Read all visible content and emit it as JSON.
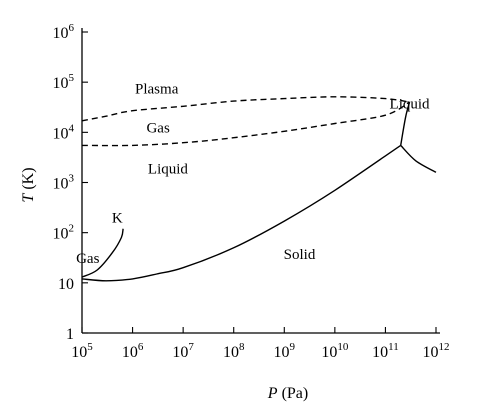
{
  "chart_data": {
    "type": "line",
    "x_scale": "log",
    "y_scale": "log",
    "xlim": [
      100000,
      1000000000000
    ],
    "ylim": [
      1,
      1000000
    ],
    "grid": false,
    "xlabel": {
      "symbol": "P",
      "unit": "(Pa)"
    },
    "ylabel": {
      "symbol": "T",
      "unit": "(K)"
    },
    "x_ticks": [
      {
        "base": "10",
        "exp": "5"
      },
      {
        "base": "10",
        "exp": "6"
      },
      {
        "base": "10",
        "exp": "7"
      },
      {
        "base": "10",
        "exp": "8"
      },
      {
        "base": "10",
        "exp": "9"
      },
      {
        "base": "10",
        "exp": "10"
      },
      {
        "base": "10",
        "exp": "11"
      },
      {
        "base": "10",
        "exp": "12"
      }
    ],
    "y_ticks": [
      {
        "base": "1",
        "exp": ""
      },
      {
        "base": "10",
        "exp": ""
      },
      {
        "base": "10",
        "exp": "2"
      },
      {
        "base": "10",
        "exp": "3"
      },
      {
        "base": "10",
        "exp": "4"
      },
      {
        "base": "10",
        "exp": "5"
      },
      {
        "base": "10",
        "exp": "6"
      }
    ],
    "region_labels": [
      {
        "text": "Plasma",
        "x": 3000000,
        "y": 60000
      },
      {
        "text": "Gas",
        "x": 3200000,
        "y": 10000
      },
      {
        "text": "Liquid",
        "x": 5000000,
        "y": 1500
      },
      {
        "text": "K",
        "x": 500000,
        "y": 160
      },
      {
        "text": "Gas",
        "x": 130000,
        "y": 25
      },
      {
        "text": "Solid",
        "x": 2000000000,
        "y": 30
      },
      {
        "text": "Liquid",
        "x": 300000000000,
        "y": 30000
      }
    ],
    "series": [
      {
        "style": "solid",
        "x": [
          100000,
          300000,
          1000000,
          3000000,
          10000000,
          100000000,
          1000000000,
          10000000000,
          200000000000
        ],
        "y": [
          12,
          11,
          12,
          15,
          20,
          50,
          170,
          700,
          5500
        ]
      },
      {
        "style": "solid",
        "x": [
          100000,
          200000,
          400000,
          600000,
          650000
        ],
        "y": [
          13,
          18,
          40,
          80,
          120
        ]
      },
      {
        "style": "solid",
        "x": [
          200000000000,
          250000000000,
          300000000000
        ],
        "y": [
          5500,
          20000,
          40000
        ]
      },
      {
        "style": "solid",
        "x": [
          200000000000,
          400000000000,
          1000000000000
        ],
        "y": [
          5500,
          2700,
          1600
        ]
      },
      {
        "style": "dashed",
        "x": [
          100000,
          300000,
          1000000,
          10000000,
          100000000,
          1000000000,
          10000000000,
          100000000000,
          300000000000
        ],
        "y": [
          17000,
          21000,
          27000,
          33000,
          42000,
          47000,
          51000,
          47000,
          40000
        ]
      },
      {
        "style": "dashed",
        "x": [
          100000,
          1000000,
          10000000,
          100000000,
          1000000000,
          10000000000,
          100000000000,
          300000000000
        ],
        "y": [
          5500,
          5500,
          6200,
          7800,
          10500,
          15000,
          22000,
          40000
        ]
      }
    ]
  }
}
